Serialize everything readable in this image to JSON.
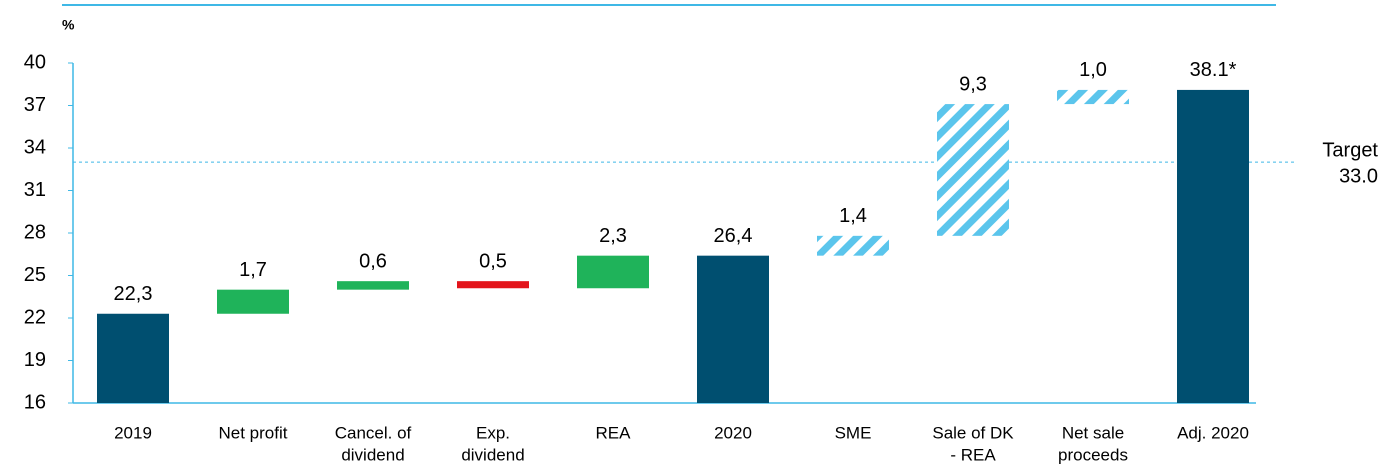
{
  "chart_data": {
    "type": "waterfall",
    "unit_label": "%",
    "categories": [
      [
        "2019"
      ],
      [
        "Net profit"
      ],
      [
        "Cancel. of",
        "dividend"
      ],
      [
        "Exp.",
        "dividend"
      ],
      [
        "REA"
      ],
      [
        "2020"
      ],
      [
        "SME"
      ],
      [
        "Sale of DK",
        "- REA"
      ],
      [
        "Net sale",
        "proceeds"
      ],
      [
        "Adj. 2020"
      ]
    ],
    "values": [
      22.3,
      1.7,
      0.6,
      -0.5,
      2.3,
      26.4,
      1.4,
      9.3,
      1.0,
      38.1
    ],
    "value_labels": [
      "22,3",
      "1,7",
      "0,6",
      "0,5",
      "2,3",
      "26,4",
      "1,4",
      "9,3",
      "1,0",
      "38.1*"
    ],
    "kinds": [
      "total",
      "change",
      "change",
      "change",
      "change",
      "total",
      "projected",
      "projected",
      "projected",
      "total"
    ],
    "colors": {
      "total": "#004f70",
      "increase": "#1fb35a",
      "decrease": "#e3141b",
      "projected": "#5bc5ec",
      "axis": "#3fb8e6"
    },
    "ylim": [
      16,
      40
    ],
    "yticks": [
      16,
      19,
      22,
      25,
      28,
      31,
      34,
      37,
      40
    ],
    "target": {
      "value": 33,
      "label": "Target",
      "value_label": "33.0"
    }
  }
}
